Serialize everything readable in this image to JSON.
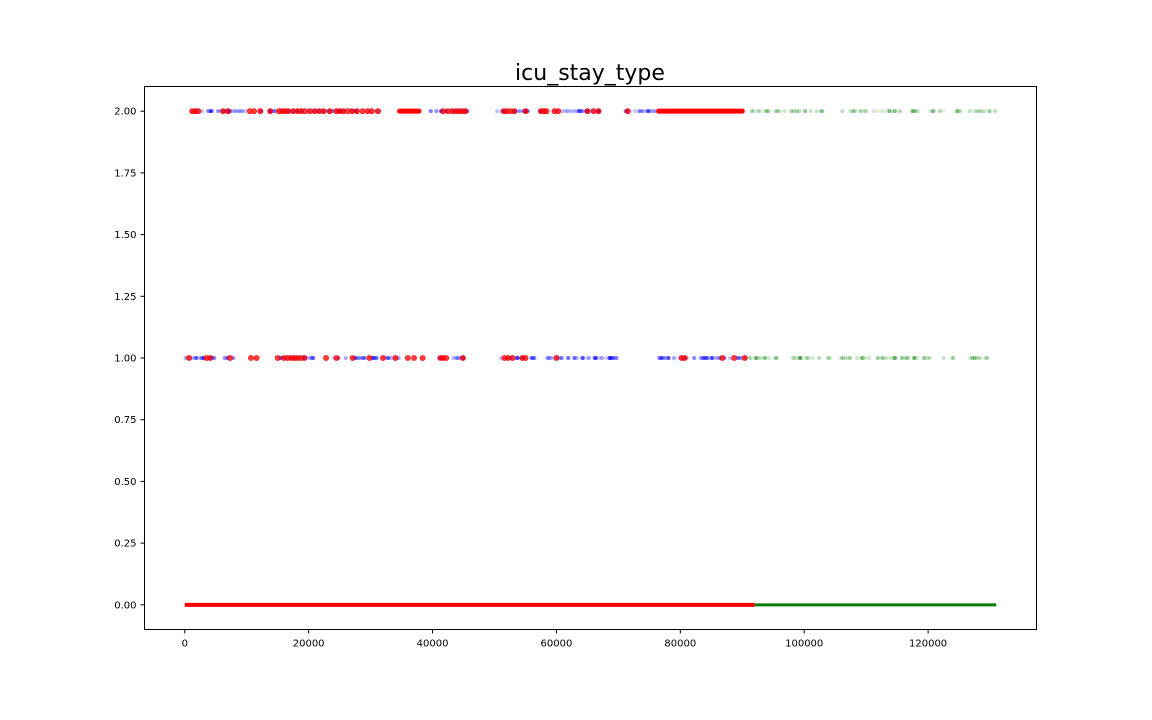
{
  "chart_data": {
    "type": "scatter",
    "title": "icu_stay_type",
    "xlabel": "",
    "ylabel": "",
    "xlim": [
      -6500,
      137500
    ],
    "ylim": [
      -0.1,
      2.1
    ],
    "x_ticks": [
      0,
      20000,
      40000,
      60000,
      80000,
      100000,
      120000
    ],
    "x_tick_labels": [
      "0",
      "20000",
      "40000",
      "60000",
      "80000",
      "100000",
      "120000"
    ],
    "y_ticks": [
      0.0,
      0.25,
      0.5,
      0.75,
      1.0,
      1.25,
      1.5,
      1.75,
      2.0
    ],
    "y_tick_labels": [
      "0.00",
      "0.25",
      "0.50",
      "0.75",
      "1.00",
      "1.25",
      "1.50",
      "1.75",
      "2.00"
    ],
    "grid": false,
    "colors": {
      "highlight": "#ff0000",
      "blue_series": "#0000ff",
      "green_series": "#008000",
      "axes": "#000000"
    },
    "series": [
      {
        "color": "red",
        "y": 0,
        "segments": [
          [
            0,
            92000
          ]
        ]
      },
      {
        "color": "green",
        "y": 0,
        "segments": [
          [
            92000,
            131000
          ]
        ]
      },
      {
        "color": "blue",
        "y": 2,
        "ranges": [
          [
            0,
            10000
          ],
          [
            12000,
            31500
          ],
          [
            34000,
            38000
          ],
          [
            39500,
            46000
          ],
          [
            50000,
            56500
          ],
          [
            57000,
            67000
          ],
          [
            71000,
            77000
          ]
        ]
      },
      {
        "color": "blue",
        "y": 1,
        "ranges": [
          [
            0,
            8500
          ],
          [
            14500,
            21000
          ],
          [
            24000,
            35000
          ],
          [
            40500,
            45500
          ],
          [
            51000,
            56500
          ],
          [
            57500,
            70000
          ],
          [
            76500,
            91000
          ]
        ]
      },
      {
        "color": "green",
        "y": 2,
        "ranges": [
          [
            91000,
            131000
          ]
        ]
      },
      {
        "color": "green",
        "y": 1,
        "ranges": [
          [
            91000,
            131000
          ]
        ]
      },
      {
        "color": "red",
        "y": 2,
        "points": [
          1200,
          1700,
          2200,
          6200,
          7000,
          10500,
          11200,
          12200,
          13800,
          15200,
          15700,
          16200,
          16700,
          17500,
          18200,
          18800,
          19400,
          20200,
          21000,
          21700,
          22400,
          23400,
          24500,
          25000,
          25600,
          26300,
          27000,
          27800,
          28700,
          29500,
          30200,
          31200,
          41700,
          42500,
          43200,
          43800,
          44300,
          44800,
          45300,
          51500,
          52000,
          52600,
          53200,
          55000,
          57500,
          58000,
          58400,
          59700,
          60300,
          65000,
          66000,
          66800,
          71500
        ],
        "segments": [
          [
            34700,
            37800
          ],
          [
            76500,
            90000
          ]
        ]
      },
      {
        "color": "red",
        "y": 1,
        "points": [
          700,
          3500,
          4100,
          7300,
          10700,
          11600,
          15000,
          16000,
          16600,
          17200,
          17700,
          18100,
          18700,
          19300,
          22800,
          24500,
          27100,
          29800,
          32000,
          34000,
          36000,
          37000,
          38400,
          41300,
          41700,
          42200,
          44900,
          51600,
          52200,
          52900,
          54500,
          55000,
          60000,
          80200,
          80700,
          86800,
          88700,
          90400
        ]
      }
    ]
  }
}
